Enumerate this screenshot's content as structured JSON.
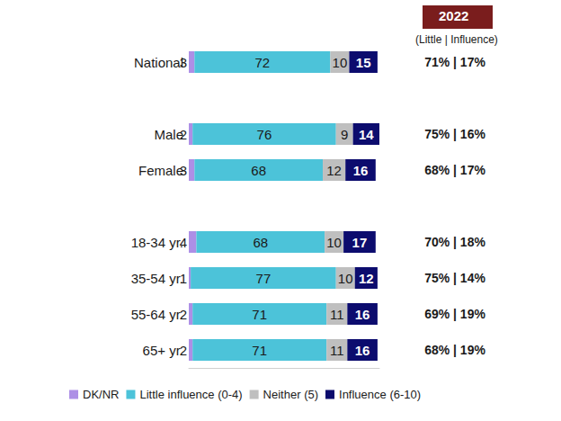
{
  "chart_data": {
    "type": "bar",
    "orientation": "horizontal",
    "stacked": true,
    "data_labels": true,
    "grid": false,
    "tick_labels": "y",
    "legend": "bottom",
    "categories": [
      "National",
      null,
      "Male",
      "Female",
      null,
      "18-34 yr.",
      "35-54 yr.",
      "55-64 yr.",
      "65+ yr."
    ],
    "xlim": [
      0,
      101
    ],
    "xticks": [],
    "series": [
      {
        "name": "DK/NR",
        "color": "#ad8fe6",
        "values": [
          3,
          null,
          2,
          3,
          null,
          4,
          1,
          2,
          2
        ]
      },
      {
        "name": "Little influence (0-4)",
        "color": "#4cc3d9",
        "values": [
          72,
          null,
          76,
          68,
          null,
          68,
          77,
          71,
          71
        ]
      },
      {
        "name": "Neither (5)",
        "color": "#bfbfbf",
        "values": [
          10,
          null,
          9,
          12,
          null,
          10,
          10,
          11,
          11
        ]
      },
      {
        "name": "Influence (6-10)",
        "color": "#0c0c6e",
        "values": [
          15,
          null,
          14,
          16,
          null,
          17,
          12,
          16,
          16
        ]
      }
    ],
    "annotation_title": "2022",
    "annotation_subtitle": "(Little | Influence)",
    "annotations": [
      "71% | 17%",
      null,
      "75% | 16%",
      "68% | 17%",
      null,
      "70% | 18%",
      "75% | 14%",
      "69% | 19%",
      "68% | 19%"
    ]
  }
}
